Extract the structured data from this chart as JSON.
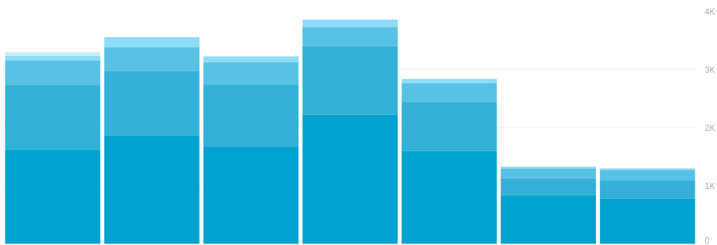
{
  "chart_data": {
    "type": "bar",
    "stacked": true,
    "categories": [
      null,
      null,
      null,
      null,
      null,
      null,
      null
    ],
    "series": [
      {
        "color": "#00a3cf",
        "values": [
          1630,
          1870,
          1670,
          2230,
          1600,
          840,
          780
        ]
      },
      {
        "color": "#33b0d8",
        "values": [
          1100,
          1100,
          1080,
          1180,
          850,
          290,
          320
        ]
      },
      {
        "color": "#57c2e4",
        "values": [
          430,
          420,
          380,
          320,
          320,
          170,
          170
        ]
      },
      {
        "color": "#8fdcf8",
        "values": [
          80,
          170,
          100,
          130,
          70,
          30,
          30
        ]
      },
      {
        "color": "#c9ecfa",
        "values": [
          60,
          null,
          null,
          null,
          null,
          null,
          null
        ]
      }
    ],
    "ylim": [
      0,
      4000
    ],
    "yticks": [
      {
        "value": 0,
        "label": "0"
      },
      {
        "value": 1000,
        "label": "1K"
      },
      {
        "value": 2000,
        "label": "2K"
      },
      {
        "value": 3000,
        "label": "3K"
      },
      {
        "value": 4000,
        "label": "4K"
      }
    ],
    "grid": "y"
  }
}
